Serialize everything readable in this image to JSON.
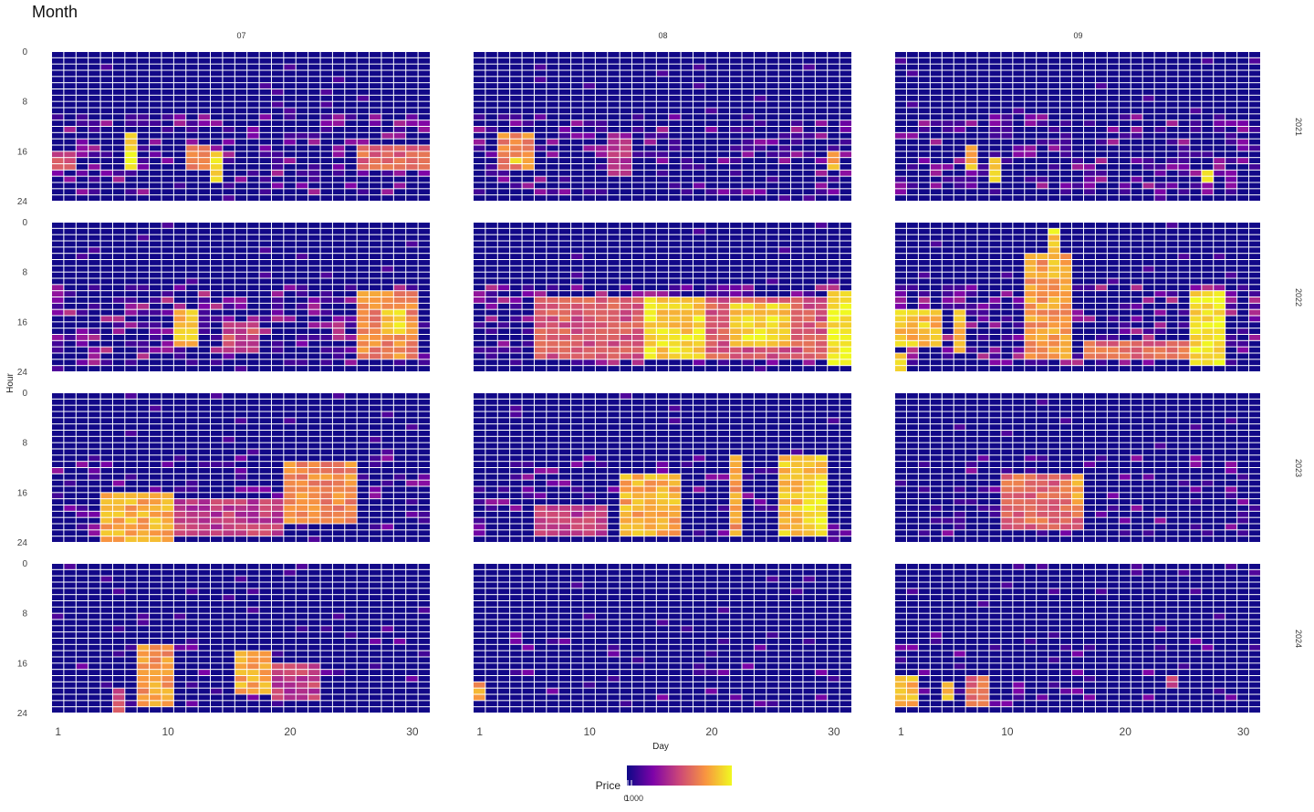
{
  "chart_data": {
    "type": "heatmap",
    "title": "Month",
    "xlabel": "Day",
    "ylabel": "Hour",
    "column_facets": [
      "07",
      "08",
      "09"
    ],
    "row_facets": [
      "2021",
      "2022",
      "2023",
      "2024"
    ],
    "x_range": [
      1,
      31
    ],
    "y_range": [
      0,
      24
    ],
    "x_ticks": [
      "1",
      "10",
      "20",
      "30"
    ],
    "y_ticks": [
      "0",
      "8",
      "16",
      "24"
    ],
    "legend": {
      "title": "Price",
      "labels": [
        "0",
        "1000"
      ],
      "colorscale": "plasma",
      "placement": "bottom"
    },
    "value_scale": [
      0,
      1
    ],
    "high_regions": [
      {
        "year": "2021",
        "month": "07",
        "day_from": 7,
        "day_to": 7,
        "hour_from": 13,
        "hour_to": 18,
        "value": 0.95
      },
      {
        "year": "2021",
        "month": "07",
        "day_from": 14,
        "day_to": 14,
        "hour_from": 16,
        "hour_to": 20,
        "value": 0.95
      },
      {
        "year": "2021",
        "month": "07",
        "day_from": 12,
        "day_to": 13,
        "hour_from": 15,
        "hour_to": 18,
        "value": 0.65
      },
      {
        "year": "2021",
        "month": "07",
        "day_from": 26,
        "day_to": 31,
        "hour_from": 15,
        "hour_to": 18,
        "value": 0.6
      },
      {
        "year": "2021",
        "month": "07",
        "day_from": 1,
        "day_to": 2,
        "hour_from": 16,
        "hour_to": 18,
        "value": 0.5
      },
      {
        "year": "2021",
        "month": "08",
        "day_from": 3,
        "day_to": 5,
        "hour_from": 13,
        "hour_to": 18,
        "value": 0.7
      },
      {
        "year": "2021",
        "month": "08",
        "day_from": 4,
        "day_to": 4,
        "hour_from": 17,
        "hour_to": 17,
        "value": 0.95
      },
      {
        "year": "2021",
        "month": "08",
        "day_from": 30,
        "day_to": 30,
        "hour_from": 16,
        "hour_to": 18,
        "value": 0.8
      },
      {
        "year": "2021",
        "month": "08",
        "day_from": 12,
        "day_to": 13,
        "hour_from": 14,
        "hour_to": 19,
        "value": 0.45
      },
      {
        "year": "2021",
        "month": "09",
        "day_from": 7,
        "day_to": 7,
        "hour_from": 15,
        "hour_to": 18,
        "value": 0.85
      },
      {
        "year": "2021",
        "month": "09",
        "day_from": 9,
        "day_to": 9,
        "hour_from": 17,
        "hour_to": 20,
        "value": 0.85
      },
      {
        "year": "2021",
        "month": "09",
        "day_from": 27,
        "day_to": 27,
        "hour_from": 19,
        "hour_to": 20,
        "value": 0.9
      },
      {
        "year": "2022",
        "month": "07",
        "day_from": 11,
        "day_to": 12,
        "hour_from": 14,
        "hour_to": 19,
        "value": 0.85
      },
      {
        "year": "2022",
        "month": "07",
        "day_from": 26,
        "day_to": 30,
        "hour_from": 11,
        "hour_to": 21,
        "value": 0.7
      },
      {
        "year": "2022",
        "month": "07",
        "day_from": 28,
        "day_to": 29,
        "hour_from": 14,
        "hour_to": 17,
        "value": 0.9
      },
      {
        "year": "2022",
        "month": "07",
        "day_from": 15,
        "day_to": 17,
        "hour_from": 16,
        "hour_to": 20,
        "value": 0.5
      },
      {
        "year": "2022",
        "month": "08",
        "day_from": 6,
        "day_to": 31,
        "hour_from": 12,
        "hour_to": 21,
        "value": 0.55
      },
      {
        "year": "2022",
        "month": "08",
        "day_from": 15,
        "day_to": 19,
        "hour_from": 12,
        "hour_to": 21,
        "value": 0.9
      },
      {
        "year": "2022",
        "month": "08",
        "day_from": 22,
        "day_to": 26,
        "hour_from": 13,
        "hour_to": 19,
        "value": 0.9
      },
      {
        "year": "2022",
        "month": "08",
        "day_from": 30,
        "day_to": 31,
        "hour_from": 11,
        "hour_to": 22,
        "value": 0.97
      },
      {
        "year": "2022",
        "month": "09",
        "day_from": 12,
        "day_to": 15,
        "hour_from": 5,
        "hour_to": 21,
        "value": 0.75
      },
      {
        "year": "2022",
        "month": "09",
        "day_from": 14,
        "day_to": 14,
        "hour_from": 1,
        "hour_to": 8,
        "value": 0.9
      },
      {
        "year": "2022",
        "month": "09",
        "day_from": 26,
        "day_to": 28,
        "hour_from": 11,
        "hour_to": 22,
        "value": 0.95
      },
      {
        "year": "2022",
        "month": "09",
        "day_from": 1,
        "day_to": 4,
        "hour_from": 14,
        "hour_to": 19,
        "value": 0.85
      },
      {
        "year": "2022",
        "month": "09",
        "day_from": 1,
        "day_to": 1,
        "hour_from": 21,
        "hour_to": 24,
        "value": 0.9
      },
      {
        "year": "2022",
        "month": "09",
        "day_from": 6,
        "day_to": 6,
        "hour_from": 14,
        "hour_to": 20,
        "value": 0.8
      },
      {
        "year": "2022",
        "month": "09",
        "day_from": 17,
        "day_to": 25,
        "hour_from": 19,
        "hour_to": 21,
        "value": 0.6
      },
      {
        "year": "2023",
        "month": "07",
        "day_from": 5,
        "day_to": 10,
        "hour_from": 16,
        "hour_to": 23,
        "value": 0.8
      },
      {
        "year": "2023",
        "month": "07",
        "day_from": 20,
        "day_to": 25,
        "hour_from": 11,
        "hour_to": 20,
        "value": 0.7
      },
      {
        "year": "2023",
        "month": "07",
        "day_from": 11,
        "day_to": 19,
        "hour_from": 17,
        "hour_to": 22,
        "value": 0.45
      },
      {
        "year": "2023",
        "month": "08",
        "day_from": 13,
        "day_to": 17,
        "hour_from": 13,
        "hour_to": 22,
        "value": 0.8
      },
      {
        "year": "2023",
        "month": "08",
        "day_from": 22,
        "day_to": 22,
        "hour_from": 10,
        "hour_to": 22,
        "value": 0.75
      },
      {
        "year": "2023",
        "month": "08",
        "day_from": 26,
        "day_to": 29,
        "hour_from": 10,
        "hour_to": 22,
        "value": 0.85
      },
      {
        "year": "2023",
        "month": "08",
        "day_from": 28,
        "day_to": 29,
        "hour_from": 14,
        "hour_to": 21,
        "value": 0.97
      },
      {
        "year": "2023",
        "month": "08",
        "day_from": 6,
        "day_to": 11,
        "hour_from": 18,
        "hour_to": 22,
        "value": 0.45
      },
      {
        "year": "2023",
        "month": "09",
        "day_from": 10,
        "day_to": 16,
        "hour_from": 13,
        "hour_to": 21,
        "value": 0.6
      },
      {
        "year": "2023",
        "month": "09",
        "day_from": 16,
        "day_to": 16,
        "hour_from": 13,
        "hour_to": 19,
        "value": 0.75
      },
      {
        "year": "2024",
        "month": "07",
        "day_from": 8,
        "day_to": 10,
        "hour_from": 13,
        "hour_to": 22,
        "value": 0.75
      },
      {
        "year": "2024",
        "month": "07",
        "day_from": 16,
        "day_to": 18,
        "hour_from": 14,
        "hour_to": 20,
        "value": 0.8
      },
      {
        "year": "2024",
        "month": "07",
        "day_from": 19,
        "day_to": 22,
        "hour_from": 16,
        "hour_to": 21,
        "value": 0.45
      },
      {
        "year": "2024",
        "month": "07",
        "day_from": 6,
        "day_to": 6,
        "hour_from": 20,
        "hour_to": 23,
        "value": 0.55
      },
      {
        "year": "2024",
        "month": "08",
        "day_from": 1,
        "day_to": 1,
        "hour_from": 19,
        "hour_to": 21,
        "value": 0.75
      },
      {
        "year": "2024",
        "month": "09",
        "day_from": 1,
        "day_to": 2,
        "hour_from": 18,
        "hour_to": 22,
        "value": 0.85
      },
      {
        "year": "2024",
        "month": "09",
        "day_from": 5,
        "day_to": 5,
        "hour_from": 19,
        "hour_to": 21,
        "value": 0.85
      },
      {
        "year": "2024",
        "month": "09",
        "day_from": 7,
        "day_to": 8,
        "hour_from": 18,
        "hour_to": 22,
        "value": 0.6
      },
      {
        "year": "2024",
        "month": "09",
        "day_from": 24,
        "day_to": 24,
        "hour_from": 18,
        "hour_to": 19,
        "value": 0.5
      }
    ]
  }
}
